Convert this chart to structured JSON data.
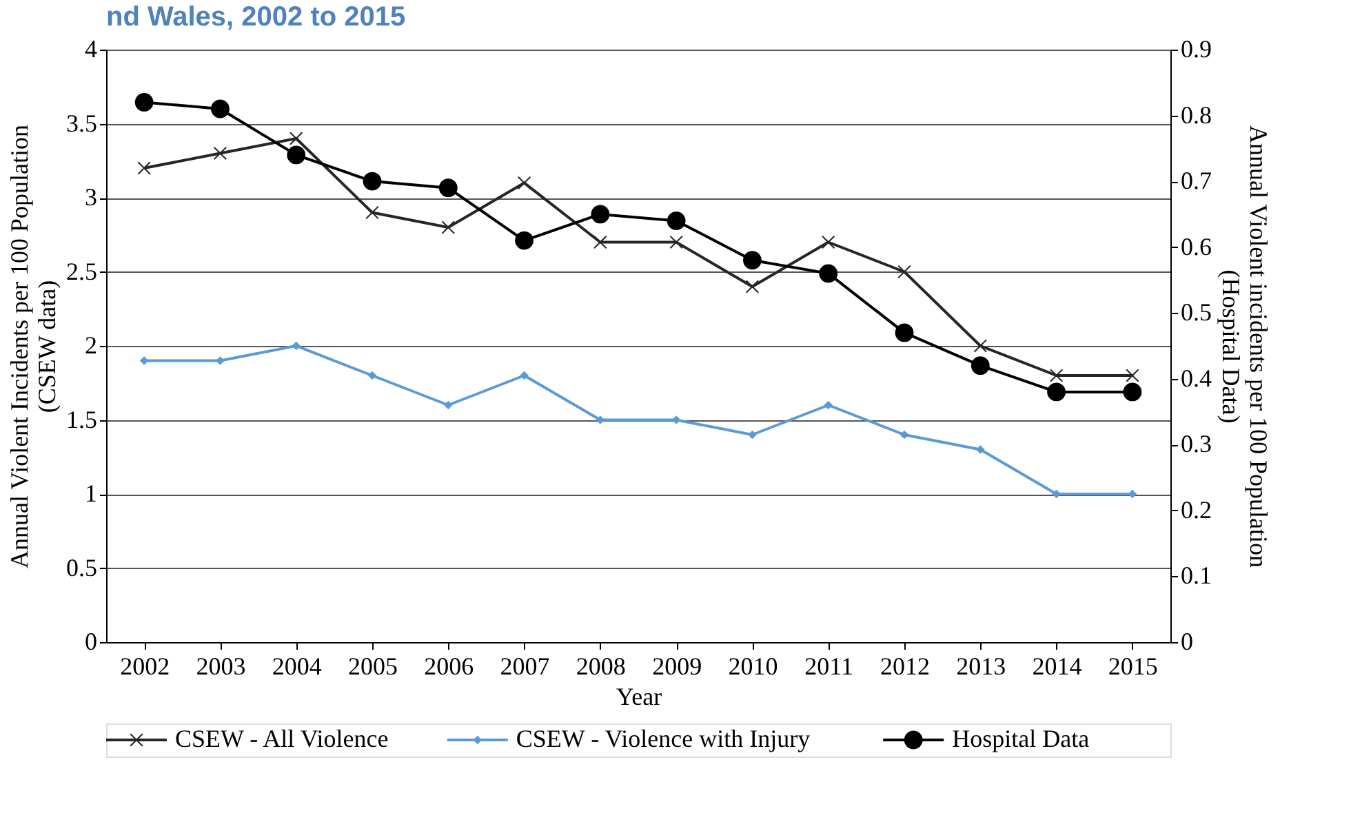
{
  "chart_data": {
    "type": "line",
    "title": "nd Wales, 2002 to 2015",
    "xlabel": "Year",
    "ylabel": "Annual Violent Incidents per 100 Population\n(CSEW data)",
    "y2label": "Annual Violent incidents per 100 Population\n(Hospital Data)",
    "categories": [
      "2002",
      "2003",
      "2004",
      "2005",
      "2006",
      "2007",
      "2008",
      "2009",
      "2010",
      "2011",
      "2012",
      "2013",
      "2014",
      "2015"
    ],
    "series": [
      {
        "name": "CSEW - All Violence",
        "color": "#262626",
        "marker": "cross",
        "values": [
          3.2,
          3.3,
          3.4,
          2.9,
          2.8,
          3.1,
          2.7,
          2.7,
          2.4,
          2.7,
          2.5,
          2.0,
          1.8,
          1.8
        ]
      },
      {
        "name": "CSEW - Violence with Injury",
        "color": "#5b9bd5",
        "marker": "diamond",
        "values": [
          1.9,
          1.9,
          2.0,
          1.8,
          1.6,
          1.8,
          1.5,
          1.5,
          1.4,
          1.6,
          1.4,
          1.3,
          1.0,
          1.0
        ]
      },
      {
        "name": "Hospital Data",
        "color": "#000000",
        "marker": "circle",
        "axis": "y2",
        "values": [
          0.82,
          0.81,
          0.74,
          0.7,
          0.69,
          0.61,
          0.65,
          0.64,
          0.58,
          0.56,
          0.47,
          0.42,
          0.38,
          0.38
        ]
      }
    ],
    "ylim": [
      0,
      4
    ],
    "yticks": [
      0,
      0.5,
      1,
      1.5,
      2,
      2.5,
      3,
      3.5,
      4
    ],
    "y2lim": [
      0,
      0.9
    ],
    "y2ticks": [
      0,
      0.1,
      0.2,
      0.3,
      0.4,
      0.5,
      0.6,
      0.7,
      0.8,
      0.9
    ],
    "grid": "y",
    "legend": "bottom",
    "line_style": "solid"
  }
}
